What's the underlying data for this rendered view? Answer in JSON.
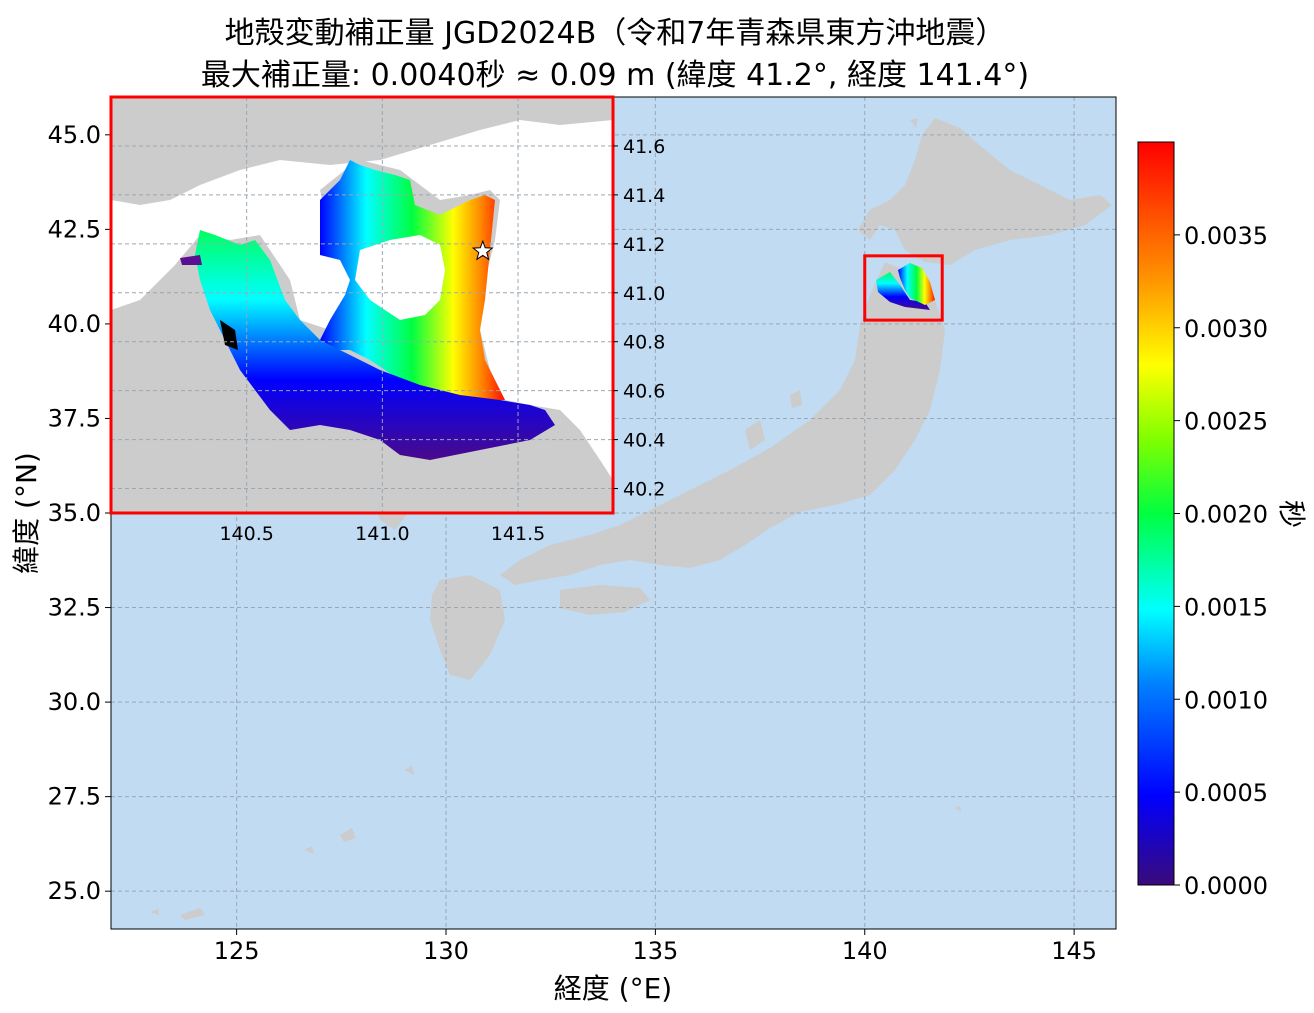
{
  "title": {
    "line1": "地殻変動補正量 JGD2024B（令和7年青森県東方沖地震）",
    "line2": "最大補正量: 0.0040秒 ≈ 0.09 m (緯度 41.2°, 経度 141.4°)"
  },
  "colors": {
    "ocean": "#c0dbf2",
    "land": "#cccccc",
    "frame": "#ff0000",
    "grid": "#9aa7b5"
  },
  "main_map": {
    "xlabel": "経度 (°E)",
    "ylabel": "緯度 (°N)",
    "xlim": [
      122,
      146
    ],
    "ylim": [
      24,
      46
    ],
    "xticks": [
      125,
      130,
      135,
      140,
      145
    ],
    "xtick_labels": [
      "125",
      "130",
      "135",
      "140",
      "145"
    ],
    "yticks": [
      25.0,
      27.5,
      30.0,
      32.5,
      35.0,
      37.5,
      40.0,
      42.5,
      45.0
    ],
    "ytick_labels": [
      "25.0",
      "27.5",
      "30.0",
      "32.5",
      "35.0",
      "37.5",
      "40.0",
      "42.5",
      "45.0"
    ],
    "highlight_box": {
      "lon": [
        140.0,
        141.85
      ],
      "lat": [
        40.1,
        41.8
      ]
    }
  },
  "inset_map": {
    "xlim": [
      140.0,
      141.85
    ],
    "ylim": [
      40.1,
      41.8
    ],
    "xticks": [
      140.5,
      141.0,
      141.5
    ],
    "xtick_labels": [
      "140.5",
      "141.0",
      "141.5"
    ],
    "yticks": [
      40.2,
      40.4,
      40.6,
      40.8,
      41.0,
      41.2,
      41.4,
      41.6
    ],
    "ytick_labels": [
      "40.2",
      "40.4",
      "40.6",
      "40.8",
      "41.0",
      "41.2",
      "41.4",
      "41.6"
    ],
    "max_marker": {
      "lon": 141.37,
      "lat": 41.17,
      "symbol": "star"
    }
  },
  "colorbar": {
    "label": "秒",
    "min": 0.0,
    "max": 0.004,
    "ticks": [
      0.0,
      0.0005,
      0.001,
      0.0015,
      0.002,
      0.0025,
      0.003,
      0.0035
    ],
    "tick_labels": [
      "0.0000",
      "0.0005",
      "0.0010",
      "0.0015",
      "0.0020",
      "0.0025",
      "0.0030",
      "0.0035"
    ],
    "colormap": "jet-like (indigo → blue → cyan → green → yellow → orange → red)"
  },
  "chart_data": {
    "type": "heatmap",
    "title": "地殻変動補正量 JGD2024B（令和7年青森県東方沖地震）",
    "subtitle": "最大補正量: 0.0040秒 ≈ 0.09 m (緯度 41.2°, 経度 141.4°)",
    "xlabel": "経度 (°E)",
    "ylabel": "緯度 (°N)",
    "value_label": "秒",
    "value_range": [
      0.0,
      0.004
    ],
    "max_value": 0.004,
    "max_location": {
      "lat": 41.2,
      "lon": 141.4
    }
  }
}
